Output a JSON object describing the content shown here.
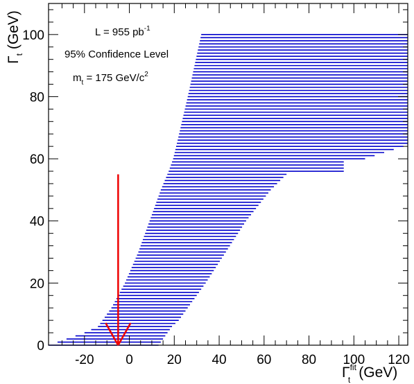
{
  "chart_data": {
    "type": "area",
    "title": "",
    "xlabel": {
      "symbol": "Γ",
      "superscript": "fit",
      "subscript": "t",
      "unit": "(GeV)"
    },
    "ylabel": {
      "symbol": "Γ",
      "subscript": "t",
      "unit": "(GeV)"
    },
    "xlim": [
      -36,
      124
    ],
    "ylim": [
      0,
      110
    ],
    "xticks": [
      "-20",
      "0",
      "20",
      "40",
      "60",
      "80",
      "100",
      "120"
    ],
    "yticks": [
      "0",
      "20",
      "40",
      "60",
      "80",
      "100"
    ],
    "grid": false,
    "series": [
      {
        "style": "horizontal-lines",
        "color": "#0000cc",
        "band_lower_x": [
          [
            0,
            -36
          ],
          [
            4,
            -20
          ],
          [
            6,
            -14
          ],
          [
            8,
            -12
          ],
          [
            10,
            -10
          ],
          [
            12,
            -8
          ],
          [
            20,
            -2
          ],
          [
            30,
            4
          ],
          [
            40,
            9
          ],
          [
            50,
            14
          ],
          [
            56,
            17.5
          ],
          [
            60,
            19.5
          ],
          [
            66,
            21.5
          ],
          [
            80,
            26
          ],
          [
            90,
            29
          ],
          [
            100,
            32
          ]
        ],
        "band_upper_x": [
          [
            0,
            13
          ],
          [
            2,
            15
          ],
          [
            4,
            17
          ],
          [
            6,
            19
          ],
          [
            8,
            22
          ],
          [
            10,
            24
          ],
          [
            12,
            26
          ],
          [
            20,
            34
          ],
          [
            30,
            43
          ],
          [
            40,
            52
          ],
          [
            50,
            63
          ],
          [
            55,
            70
          ],
          [
            56,
            95.5
          ],
          [
            58,
            95.5
          ],
          [
            59,
            95.5
          ],
          [
            60,
            105
          ],
          [
            64,
            122
          ],
          [
            65,
            124
          ],
          [
            100,
            124
          ]
        ]
      }
    ],
    "annotations": {
      "luminosity": {
        "text": "L = 955 pb",
        "sup": "-1"
      },
      "confidence": {
        "text": "95% Confidence Level"
      },
      "mass": {
        "prefix": "m",
        "sub": "t",
        "mid": " = 175 GeV/c",
        "sup": "2"
      }
    },
    "arrow": {
      "x": -5,
      "y_from": 55,
      "y_to": 0,
      "color": "#ee0000"
    }
  }
}
